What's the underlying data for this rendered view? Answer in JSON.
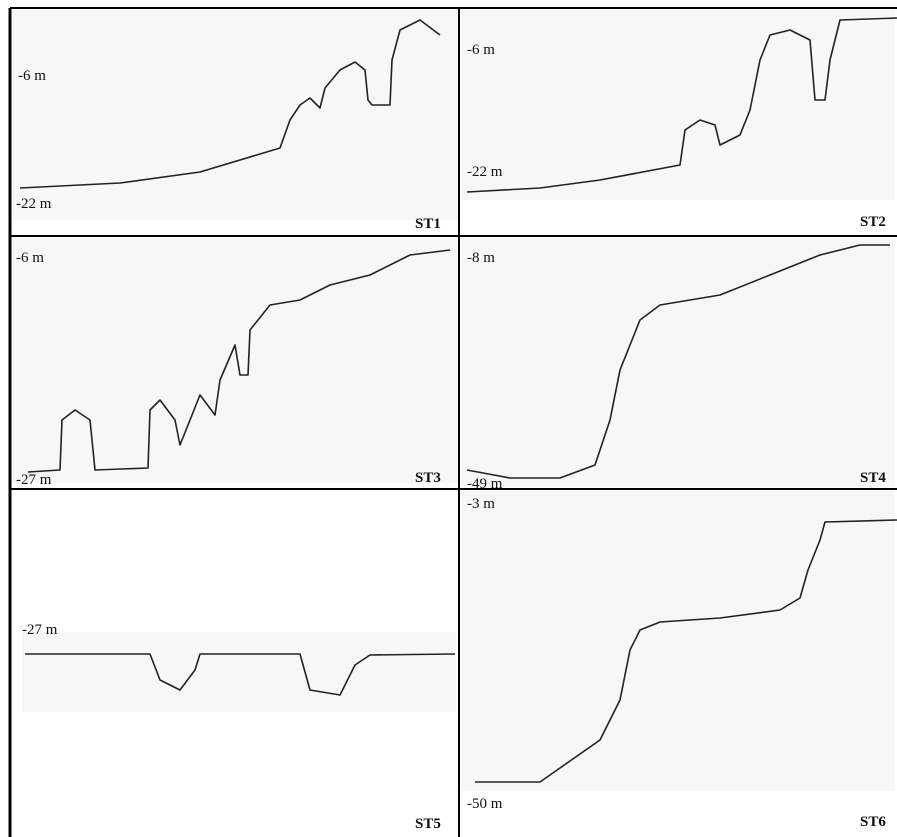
{
  "panels": [
    {
      "label": "ST1",
      "depths": [
        "-6 m",
        "-22 m"
      ]
    },
    {
      "label": "ST2",
      "depths": [
        "-6 m",
        "-22 m"
      ]
    },
    {
      "label": "ST3",
      "depths": [
        "-6 m",
        "-27 m"
      ]
    },
    {
      "label": "ST4",
      "depths": [
        "-8 m",
        "-49 m"
      ]
    },
    {
      "label": "ST5",
      "depths": [
        "-27 m"
      ]
    },
    {
      "label": "ST6",
      "depths": [
        "-3 m",
        "-50 m"
      ]
    }
  ]
}
